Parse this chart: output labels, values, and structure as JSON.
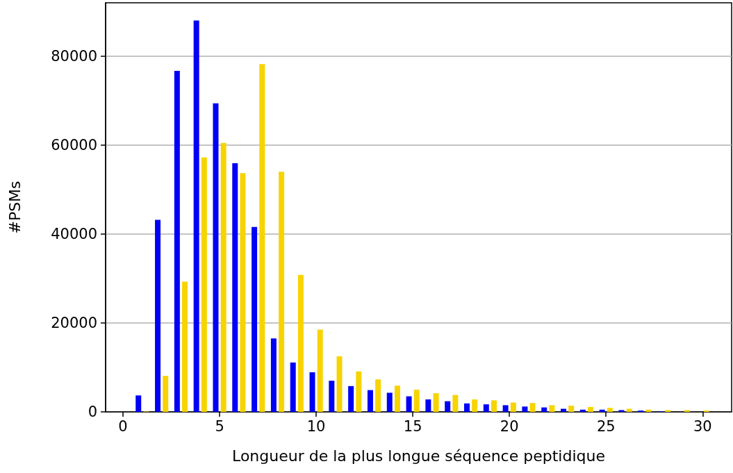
{
  "chart_data": {
    "type": "bar",
    "xlabel": "Longueur de la plus longue séquence peptidique",
    "ylabel": "#PSMs",
    "x": [
      1,
      2,
      3,
      4,
      5,
      6,
      7,
      8,
      9,
      10,
      11,
      12,
      13,
      14,
      15,
      16,
      17,
      18,
      19,
      20,
      21,
      22,
      23,
      24,
      25,
      26,
      27,
      28,
      29,
      30
    ],
    "series": [
      {
        "color": "#0000f5",
        "values": [
          3700,
          43200,
          76700,
          88000,
          69400,
          55900,
          41600,
          16500,
          11100,
          8900,
          7000,
          5800,
          4900,
          4300,
          3500,
          2800,
          2400,
          1900,
          1700,
          1500,
          1200,
          1000,
          700,
          500,
          500,
          400,
          300,
          100,
          0,
          0
        ]
      },
      {
        "color": "#f7d400",
        "values": [
          100,
          8100,
          29300,
          57200,
          60500,
          53700,
          78200,
          54000,
          30800,
          18500,
          12500,
          9100,
          7300,
          5900,
          5000,
          4200,
          3800,
          2800,
          2600,
          2100,
          2000,
          1500,
          1400,
          1100,
          900,
          700,
          500,
          400,
          400,
          300
        ]
      }
    ],
    "xlim": [
      -0.9,
      31.5
    ],
    "xticks": [
      0,
      5,
      10,
      15,
      20,
      25,
      30
    ],
    "ylim": [
      0,
      92000
    ],
    "yticks": [
      0,
      20000,
      40000,
      60000,
      80000
    ],
    "grid": "y"
  }
}
